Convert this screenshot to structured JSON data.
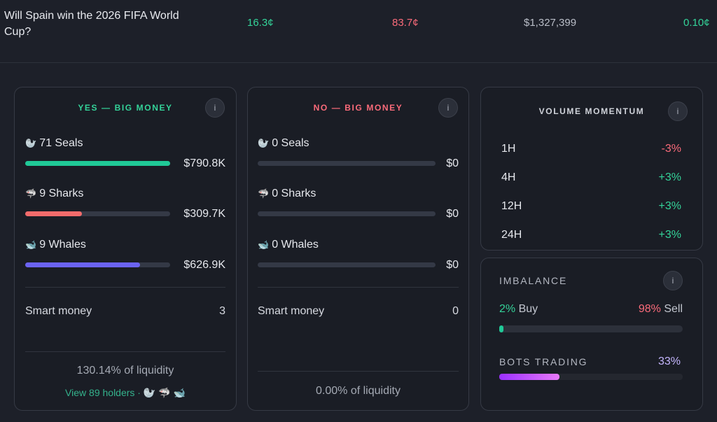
{
  "market": {
    "title": "Will Spain win the 2026 FIFA World Cup?",
    "yes_price": "16.3¢",
    "no_price": "83.7¢",
    "volume": "$1,327,399",
    "spread": "0.10¢"
  },
  "yes_card": {
    "title": "YES — BIG MONEY",
    "info_label": "i",
    "tiers": [
      {
        "icon": "seal-icon",
        "glyph": "🦭",
        "label": "71 Seals",
        "amount": "$790.8K",
        "fill_fraction": 1.0,
        "color": "#20c997"
      },
      {
        "icon": "shark-icon",
        "glyph": "🦈",
        "label": "9 Sharks",
        "amount": "$309.7K",
        "fill_fraction": 0.39,
        "color": "#f26b6b"
      },
      {
        "icon": "whale-icon",
        "glyph": "🐋",
        "label": "9 Whales",
        "amount": "$626.9K",
        "fill_fraction": 0.79,
        "color": "#6b63f2"
      }
    ],
    "smart_money_label": "Smart money",
    "smart_money_value": "3",
    "liquidity": "130.14% of liquidity",
    "holders_link": "View 89 holders · 🦭 🦈 🐋"
  },
  "no_card": {
    "title": "NO — BIG MONEY",
    "info_label": "i",
    "tiers": [
      {
        "icon": "seal-icon",
        "glyph": "🦭",
        "label": "0 Seals",
        "amount": "$0",
        "fill_fraction": 0
      },
      {
        "icon": "shark-icon",
        "glyph": "🦈",
        "label": "0 Sharks",
        "amount": "$0",
        "fill_fraction": 0
      },
      {
        "icon": "whale-icon",
        "glyph": "🐋",
        "label": "0 Whales",
        "amount": "$0",
        "fill_fraction": 0
      }
    ],
    "smart_money_label": "Smart money",
    "smart_money_value": "0",
    "liquidity": "0.00% of liquidity"
  },
  "volume_momentum": {
    "title": "VOLUME MOMENTUM",
    "info_label": "i",
    "rows": [
      {
        "label": "1H",
        "value": "-3%",
        "color": "#fb6b7a"
      },
      {
        "label": "4H",
        "value": "+3%",
        "color": "#34d399"
      },
      {
        "label": "12H",
        "value": "+3%",
        "color": "#34d399"
      },
      {
        "label": "24H",
        "value": "+3%",
        "color": "#34d399"
      }
    ]
  },
  "imbalance": {
    "title": "IMBALANCE",
    "info_label": "i",
    "buy_pct": "2%",
    "buy_label": "Buy",
    "sell_pct": "98%",
    "sell_label": "Sell",
    "buy_fraction": 0.02,
    "bots_title": "BOTS TRADING",
    "bots_value": "33%",
    "bots_fraction": 0.33
  },
  "colors": {
    "yes": "#34d399",
    "no": "#fb6b7a",
    "bots_gradient_start": "#9b30ff",
    "bots_gradient_end": "#e879f9"
  }
}
